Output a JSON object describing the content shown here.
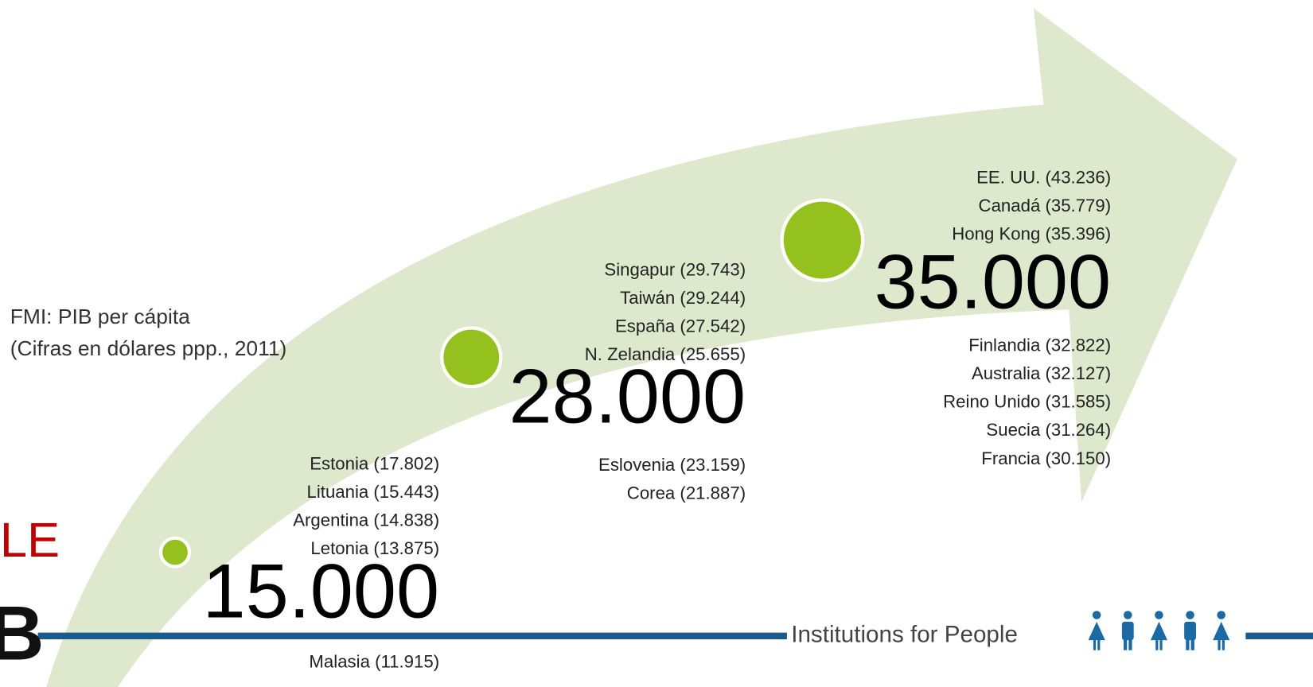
{
  "source": {
    "lines": [
      "FMI: PIB per cápita",
      "(Cifras en dólares ppp., 2011)"
    ]
  },
  "tiers": [
    {
      "level": "15.000",
      "above": [
        "Estonia (17.802)",
        "Lituania (15.443)",
        "Argentina (14.838)",
        "Letonia (13.875)"
      ],
      "below": [
        "Malasia (11.915)"
      ]
    },
    {
      "level": "28.000",
      "above": [
        "Singapur (29.743)",
        "Taiwán (29.244)",
        "España (27.542)",
        "N. Zelandia (25.655)"
      ],
      "below": [
        "Eslovenia (23.159)",
        "Corea (21.887)"
      ]
    },
    {
      "level": "35.000",
      "above": [
        "EE. UU. (43.236)",
        "Canadá (35.779)",
        "Hong Kong (35.396)"
      ],
      "below": [
        "Finlandia (32.822)",
        "Australia (32.127)",
        "Reino Unido (31.585)",
        "Suecia (31.264)",
        "Francia (30.150)"
      ]
    }
  ],
  "logo": {
    "fragment": "LE",
    "letter": "B"
  },
  "footer": {
    "tagline": "Institutions for People"
  }
}
